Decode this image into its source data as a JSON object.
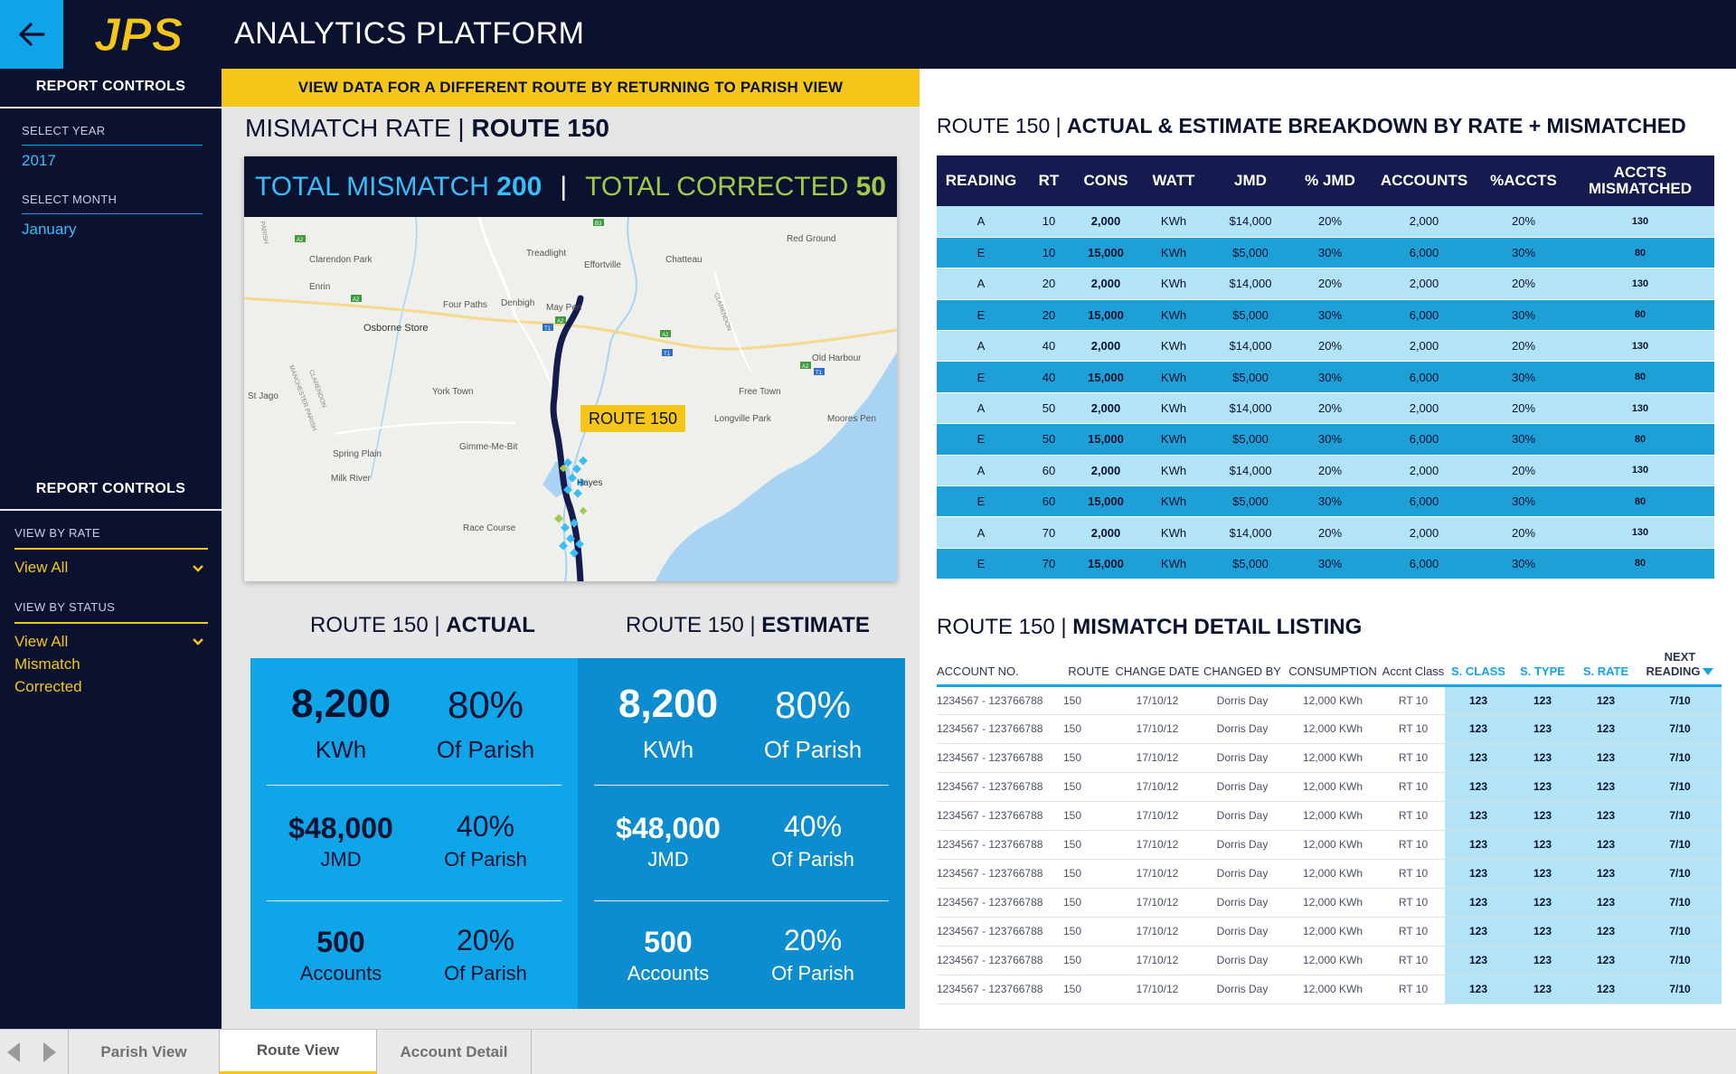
{
  "header": {
    "logo_text": "JPS",
    "title": "ANALYTICS PLATFORM",
    "back_icon": "arrow-left-icon"
  },
  "sidebar": {
    "controls_top": {
      "title": "REPORT CONTROLS",
      "year_label": "SELECT YEAR",
      "year_value": "2017",
      "month_label": "SELECT MONTH",
      "month_value": "January"
    },
    "controls_bottom": {
      "title": "REPORT CONTROLS",
      "rate_label": "VIEW BY RATE",
      "rate_value": "View All",
      "status_label": "VIEW BY STATUS",
      "status_options": [
        "View All",
        "Mismatch",
        "Corrected"
      ]
    }
  },
  "middle": {
    "banner": "VIEW DATA FOR A DIFFERENT ROUTE BY RETURNING TO PARISH VIEW",
    "title_prefix": "MISMATCH RATE | ",
    "title_route": "ROUTE 150",
    "map": {
      "total_mismatch_label": "TOTAL MISMATCH",
      "total_mismatch_value": "200",
      "separator": "|",
      "total_corrected_label": "TOTAL CORRECTED",
      "total_corrected_value": "50",
      "route_badge": "ROUTE 150",
      "places": [
        "Red Ground",
        "Clarendon Park",
        "Treadlight",
        "Effortville",
        "Chatteau",
        "Enrin",
        "Four Paths",
        "Denbigh",
        "May Pen",
        "Osborne Store",
        "Old Harbour",
        "York Town",
        "Free Town",
        "St Jago",
        "Longville Park",
        "Moores Pen",
        "Gimme-Me-Bit",
        "Spring Plain",
        "Milk River",
        "Hayes",
        "Race Course",
        "CLARENDON",
        "MANCHESTER PARISH",
        "CLARENDON",
        "PARISH"
      ],
      "road_labels": [
        "A2",
        "B3",
        "A2",
        "A2",
        "T1",
        "A2",
        "A2",
        "T1",
        "T1"
      ]
    },
    "actual": {
      "title_prefix": "ROUTE 150 | ",
      "title_bold": "ACTUAL",
      "kwh_value": "8,200",
      "kwh_unit": "KWh",
      "kwh_pct": "80%",
      "kwh_of": "Of Parish",
      "jmd_value": "$48,000",
      "jmd_unit": "JMD",
      "jmd_pct": "40%",
      "jmd_of": "Of Parish",
      "acc_value": "500",
      "acc_unit": "Accounts",
      "acc_pct": "20%",
      "acc_of": "Of Parish"
    },
    "estimate": {
      "title_prefix": "ROUTE 150 | ",
      "title_bold": "ESTIMATE",
      "kwh_value": "8,200",
      "kwh_unit": "KWh",
      "kwh_pct": "80%",
      "kwh_of": "Of Parish",
      "jmd_value": "$48,000",
      "jmd_unit": "JMD",
      "jmd_pct": "40%",
      "jmd_of": "Of Parish",
      "acc_value": "500",
      "acc_unit": "Accounts",
      "acc_pct": "20%",
      "acc_of": "Of Parish"
    }
  },
  "breakdown": {
    "title_prefix": "ROUTE 150 | ",
    "title_bold": "ACTUAL & ESTIMATE BREAKDOWN BY RATE + MISMATCHED",
    "columns": [
      "READING",
      "RT",
      "CONS",
      "WATT",
      "JMD",
      "% JMD",
      "ACCOUNTS",
      "%ACCTS",
      "ACCTS MISMATCHED"
    ],
    "rows": [
      [
        "A",
        "10",
        "2,000",
        "KWh",
        "$14,000",
        "20%",
        "2,000",
        "20%",
        "130"
      ],
      [
        "E",
        "10",
        "15,000",
        "KWh",
        "$5,000",
        "30%",
        "6,000",
        "30%",
        "80"
      ],
      [
        "A",
        "20",
        "2,000",
        "KWh",
        "$14,000",
        "20%",
        "2,000",
        "20%",
        "130"
      ],
      [
        "E",
        "20",
        "15,000",
        "KWh",
        "$5,000",
        "30%",
        "6,000",
        "30%",
        "80"
      ],
      [
        "A",
        "40",
        "2,000",
        "KWh",
        "$14,000",
        "20%",
        "2,000",
        "20%",
        "130"
      ],
      [
        "E",
        "40",
        "15,000",
        "KWh",
        "$5,000",
        "30%",
        "6,000",
        "30%",
        "80"
      ],
      [
        "A",
        "50",
        "2,000",
        "KWh",
        "$14,000",
        "20%",
        "2,000",
        "20%",
        "130"
      ],
      [
        "E",
        "50",
        "15,000",
        "KWh",
        "$5,000",
        "30%",
        "6,000",
        "30%",
        "80"
      ],
      [
        "A",
        "60",
        "2,000",
        "KWh",
        "$14,000",
        "20%",
        "2,000",
        "20%",
        "130"
      ],
      [
        "E",
        "60",
        "15,000",
        "KWh",
        "$5,000",
        "30%",
        "6,000",
        "30%",
        "80"
      ],
      [
        "A",
        "70",
        "2,000",
        "KWh",
        "$14,000",
        "20%",
        "2,000",
        "20%",
        "130"
      ],
      [
        "E",
        "70",
        "15,000",
        "KWh",
        "$5,000",
        "30%",
        "6,000",
        "30%",
        "80"
      ]
    ]
  },
  "detail": {
    "title_prefix": "ROUTE 150 | ",
    "title_bold": "MISMATCH DETAIL LISTING",
    "columns": [
      "ACCOUNT NO.",
      "ROUTE",
      "CHANGE DATE",
      "CHANGED BY",
      "CONSUMPTION",
      "Accnt Class",
      "S. CLASS",
      "S. TYPE",
      "S. RATE",
      "NEXT READING"
    ],
    "sort_icon": "sort-down-icon",
    "rows": [
      [
        "1234567 - 123766788",
        "150",
        "17/10/12",
        "Dorris Day",
        "12,000 KWh",
        "RT 10",
        "123",
        "123",
        "123",
        "7/10"
      ],
      [
        "1234567 - 123766788",
        "150",
        "17/10/12",
        "Dorris Day",
        "12,000 KWh",
        "RT 10",
        "123",
        "123",
        "123",
        "7/10"
      ],
      [
        "1234567 - 123766788",
        "150",
        "17/10/12",
        "Dorris Day",
        "12,000 KWh",
        "RT 10",
        "123",
        "123",
        "123",
        "7/10"
      ],
      [
        "1234567 - 123766788",
        "150",
        "17/10/12",
        "Dorris Day",
        "12,000 KWh",
        "RT 10",
        "123",
        "123",
        "123",
        "7/10"
      ],
      [
        "1234567 - 123766788",
        "150",
        "17/10/12",
        "Dorris Day",
        "12,000 KWh",
        "RT 10",
        "123",
        "123",
        "123",
        "7/10"
      ],
      [
        "1234567 - 123766788",
        "150",
        "17/10/12",
        "Dorris Day",
        "12,000 KWh",
        "RT 10",
        "123",
        "123",
        "123",
        "7/10"
      ],
      [
        "1234567 - 123766788",
        "150",
        "17/10/12",
        "Dorris Day",
        "12,000 KWh",
        "RT 10",
        "123",
        "123",
        "123",
        "7/10"
      ],
      [
        "1234567 - 123766788",
        "150",
        "17/10/12",
        "Dorris Day",
        "12,000 KWh",
        "RT 10",
        "123",
        "123",
        "123",
        "7/10"
      ],
      [
        "1234567 - 123766788",
        "150",
        "17/10/12",
        "Dorris Day",
        "12,000 KWh",
        "RT 10",
        "123",
        "123",
        "123",
        "7/10"
      ],
      [
        "1234567 - 123766788",
        "150",
        "17/10/12",
        "Dorris Day",
        "12,000 KWh",
        "RT 10",
        "123",
        "123",
        "123",
        "7/10"
      ],
      [
        "1234567 - 123766788",
        "150",
        "17/10/12",
        "Dorris Day",
        "12,000 KWh",
        "RT 10",
        "123",
        "123",
        "123",
        "7/10"
      ]
    ]
  },
  "tabs": {
    "items": [
      "Parish View",
      "Route View",
      "Account Detail"
    ],
    "active": "Route View",
    "prev_icon": "triangle-left-icon",
    "next_icon": "triangle-right-icon"
  },
  "colors": {
    "navy": "#0b1230",
    "accent_blue": "#0ea5e9",
    "yellow": "#f5c518",
    "green": "#a3c94a",
    "card_actual": "#0ea5e9",
    "card_estimate": "#0b8dcf"
  }
}
